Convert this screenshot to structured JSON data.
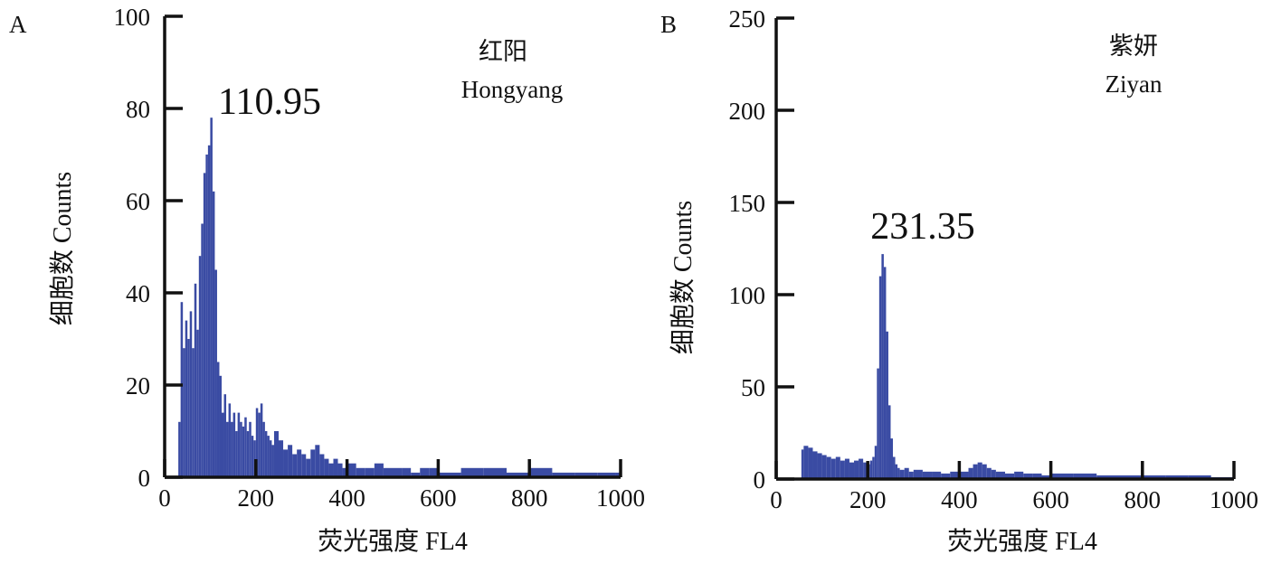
{
  "chart_data": [
    {
      "type": "histogram",
      "panel_label": "A",
      "variety_cn": "红阳",
      "variety_en": "Hongyang",
      "peak_label": "110.95",
      "xlabel": "荧光强度 FL4",
      "ylabel": "细胞数 Counts",
      "xlim": [
        0,
        1000
      ],
      "ylim": [
        0,
        100
      ],
      "xticks": [
        0,
        200,
        400,
        600,
        800,
        1000
      ],
      "yticks": [
        0,
        20,
        40,
        60,
        80,
        100
      ],
      "color": "#3a4ba3",
      "series": [
        {
          "x": [
            25,
            30,
            35,
            40,
            45,
            50,
            55,
            60,
            65,
            70,
            75,
            80,
            85,
            90,
            95,
            100,
            105,
            110,
            115,
            120,
            125,
            130,
            135,
            140,
            145,
            150,
            155,
            160,
            165,
            170,
            175,
            180,
            185,
            190,
            195,
            200,
            205,
            210,
            215,
            220,
            225,
            230,
            235,
            240,
            250,
            260,
            270,
            280,
            290,
            300,
            310,
            320,
            330,
            340,
            350,
            360,
            370,
            380,
            390,
            400,
            420,
            440,
            460,
            480,
            500,
            520,
            540,
            560,
            580,
            600,
            650,
            700,
            750,
            800,
            850,
            900,
            950,
            990
          ],
          "values": [
            0,
            12,
            38,
            28,
            34,
            30,
            36,
            28,
            42,
            32,
            48,
            55,
            66,
            70,
            72,
            78,
            62,
            45,
            25,
            22,
            14,
            18,
            12,
            16,
            12,
            14,
            10,
            14,
            12,
            11,
            13,
            10,
            12,
            9,
            8,
            15,
            14,
            16,
            12,
            10,
            9,
            8,
            7,
            10,
            8,
            6,
            7,
            5,
            6,
            5,
            4,
            6,
            7,
            5,
            4,
            3,
            4,
            3,
            2,
            3,
            2,
            2,
            3,
            2,
            2,
            2,
            1,
            2,
            2,
            1,
            2,
            2,
            1,
            2,
            1,
            1,
            1,
            1
          ]
        }
      ]
    },
    {
      "type": "histogram",
      "panel_label": "B",
      "variety_cn": "紫妍",
      "variety_en": "Ziyan",
      "peak_label": "231.35",
      "xlabel": "荧光强度 FL4",
      "ylabel": "细胞数 Counts",
      "xlim": [
        0,
        1000
      ],
      "ylim": [
        0,
        250
      ],
      "xticks": [
        0,
        200,
        400,
        600,
        800,
        1000
      ],
      "yticks": [
        0,
        50,
        100,
        150,
        200,
        250
      ],
      "color": "#3a4ba3",
      "series": [
        {
          "x": [
            50,
            55,
            60,
            70,
            80,
            90,
            100,
            110,
            120,
            130,
            140,
            150,
            160,
            170,
            180,
            190,
            200,
            205,
            210,
            215,
            220,
            225,
            230,
            235,
            240,
            245,
            250,
            255,
            260,
            265,
            270,
            280,
            290,
            300,
            320,
            340,
            360,
            380,
            400,
            420,
            430,
            440,
            450,
            460,
            470,
            480,
            500,
            520,
            540,
            560,
            580,
            600,
            650,
            700,
            750,
            800,
            850,
            900,
            950,
            1000
          ],
          "values": [
            0,
            16,
            18,
            17,
            15,
            14,
            13,
            12,
            11,
            12,
            10,
            11,
            9,
            10,
            11,
            9,
            8,
            10,
            12,
            18,
            60,
            110,
            122,
            115,
            80,
            40,
            22,
            12,
            8,
            6,
            5,
            6,
            4,
            5,
            4,
            4,
            3,
            4,
            4,
            6,
            8,
            9,
            8,
            6,
            5,
            4,
            3,
            4,
            3,
            3,
            2,
            3,
            3,
            2,
            2,
            2,
            2,
            2,
            1,
            1
          ]
        }
      ]
    }
  ]
}
